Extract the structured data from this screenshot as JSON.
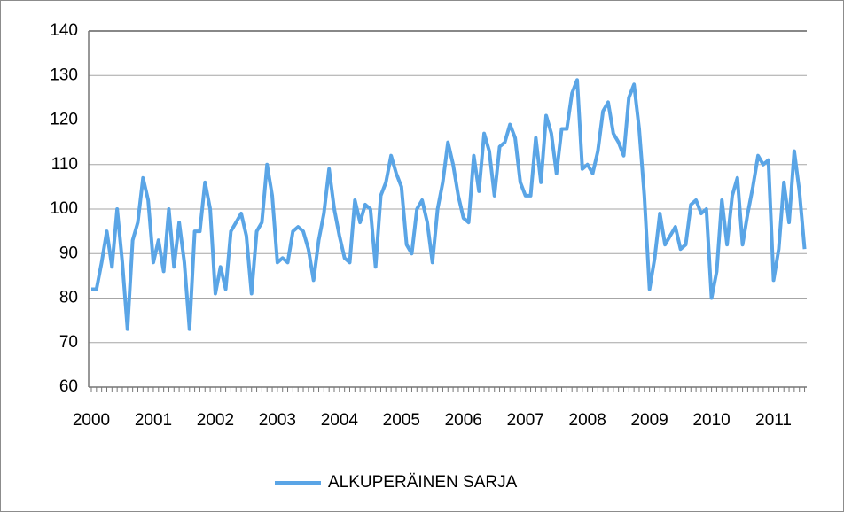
{
  "chart_data": {
    "type": "line",
    "categories": [
      "2000",
      null,
      null,
      null,
      null,
      null,
      null,
      null,
      null,
      null,
      null,
      null,
      "2001",
      null,
      null,
      null,
      null,
      null,
      null,
      null,
      null,
      null,
      null,
      null,
      "2002",
      null,
      null,
      null,
      null,
      null,
      null,
      null,
      null,
      null,
      null,
      null,
      "2003",
      null,
      null,
      null,
      null,
      null,
      null,
      null,
      null,
      null,
      null,
      null,
      "2004",
      null,
      null,
      null,
      null,
      null,
      null,
      null,
      null,
      null,
      null,
      null,
      "2005",
      null,
      null,
      null,
      null,
      null,
      null,
      null,
      null,
      null,
      null,
      null,
      "2006",
      null,
      null,
      null,
      null,
      null,
      null,
      null,
      null,
      null,
      null,
      null,
      "2007",
      null,
      null,
      null,
      null,
      null,
      null,
      null,
      null,
      null,
      null,
      null,
      "2008",
      null,
      null,
      null,
      null,
      null,
      null,
      null,
      null,
      null,
      null,
      null,
      "2009",
      null,
      null,
      null,
      null,
      null,
      null,
      null,
      null,
      null,
      null,
      null,
      "2010",
      null,
      null,
      null,
      null,
      null,
      null,
      null,
      null,
      null,
      null,
      null,
      "2011",
      null,
      null,
      null,
      null,
      null,
      null
    ],
    "series": [
      {
        "name": "ALKUPERÄINEN SARJA",
        "color": "#5aa5e6",
        "values": [
          82,
          82,
          88,
          95,
          87,
          100,
          88,
          73,
          93,
          97,
          107,
          102,
          88,
          93,
          86,
          100,
          87,
          97,
          88,
          73,
          95,
          95,
          106,
          100,
          81,
          87,
          82,
          95,
          97,
          99,
          94,
          81,
          95,
          97,
          110,
          103,
          88,
          89,
          88,
          95,
          96,
          95,
          91,
          84,
          93,
          99,
          109,
          100,
          94,
          89,
          88,
          102,
          97,
          101,
          100,
          87,
          103,
          106,
          112,
          108,
          105,
          92,
          90,
          100,
          102,
          97,
          88,
          100,
          106,
          115,
          110,
          103,
          98,
          97,
          112,
          104,
          117,
          113,
          103,
          114,
          115,
          119,
          116,
          106,
          103,
          103,
          116,
          106,
          121,
          117,
          108,
          118,
          118,
          126,
          129,
          109,
          110,
          108,
          113,
          122,
          124,
          117,
          115,
          112,
          125,
          128,
          118,
          103,
          82,
          89,
          99,
          92,
          94,
          96,
          91,
          92,
          101,
          102,
          99,
          100,
          80,
          86,
          102,
          92,
          103,
          107,
          92,
          99,
          105,
          112,
          110,
          111,
          84,
          91,
          106,
          97,
          113,
          104,
          91
        ]
      }
    ],
    "ylim": [
      60,
      140
    ],
    "yticks": [
      60,
      70,
      80,
      90,
      100,
      110,
      120,
      130,
      140
    ],
    "grid": true,
    "legend": "bottom"
  }
}
